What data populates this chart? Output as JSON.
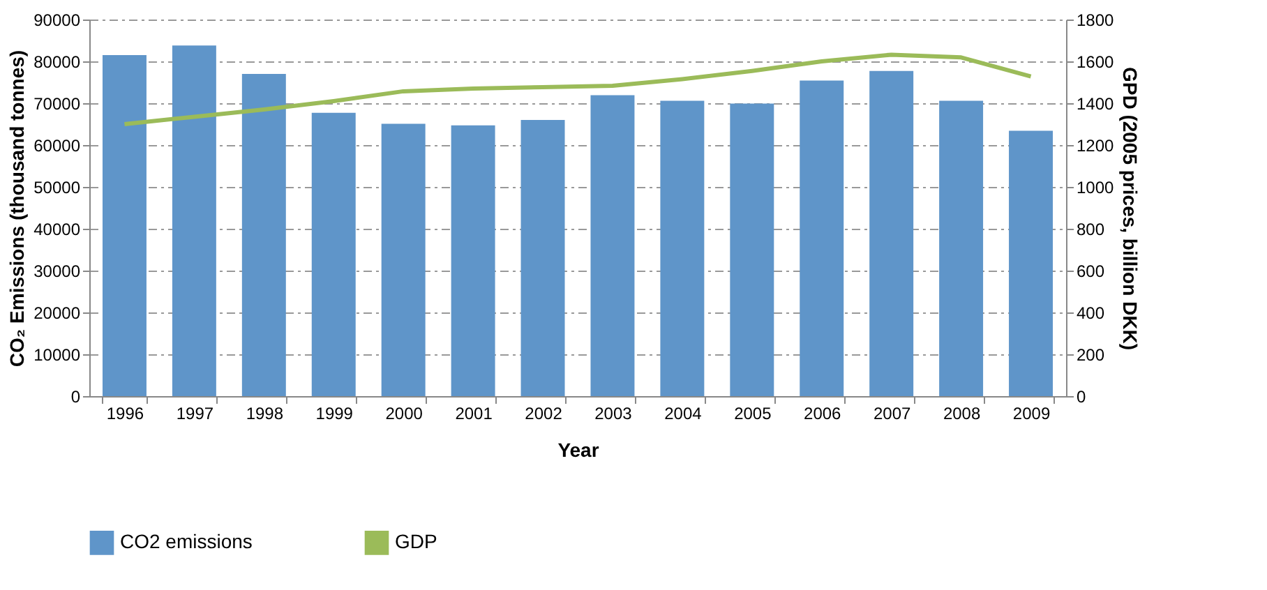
{
  "chart_data": {
    "type": "bar",
    "xlabel": "Year",
    "ylabel": "CO₂ Emissions (thousand tonnes)",
    "y2label": "GPD (2005 prices, billion  DKK)",
    "categories": [
      "1996",
      "1997",
      "1998",
      "1999",
      "2000",
      "2001",
      "2002",
      "2003",
      "2004",
      "2005",
      "2006",
      "2007",
      "2008",
      "2009"
    ],
    "series": [
      {
        "name": "CO2 emissions",
        "color": "#5f95c9",
        "values": [
          81500,
          83800,
          77000,
          67700,
          65100,
          64700,
          66000,
          71900,
          70600,
          69900,
          75400,
          77700,
          70600,
          63400
        ]
      },
      {
        "name": "GDP",
        "type": "line",
        "axis": "y2",
        "color": "#9bbb59",
        "values": [
          1300,
          1335,
          1370,
          1410,
          1457,
          1470,
          1477,
          1483,
          1515,
          1554,
          1600,
          1632,
          1619,
          1528
        ]
      }
    ],
    "ylim": [
      0,
      90000
    ],
    "yticks": [
      0,
      10000,
      20000,
      30000,
      40000,
      50000,
      60000,
      70000,
      80000,
      90000
    ],
    "y2lim": [
      0,
      1800
    ],
    "y2ticks": [
      0,
      200,
      400,
      600,
      800,
      1000,
      1200,
      1400,
      1600,
      1800
    ],
    "grid": "y",
    "legend": "bottom"
  }
}
